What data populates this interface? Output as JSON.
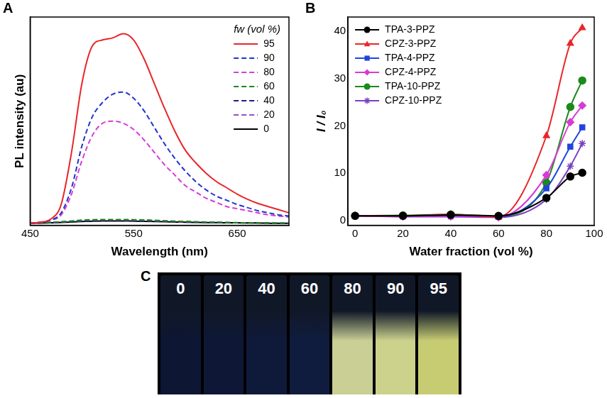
{
  "chart_data": [
    {
      "panel": "A",
      "type": "line",
      "x_label": "Wavelength (nm)",
      "y_label": "PL intensity (au)",
      "x": [
        450,
        460,
        470,
        480,
        490,
        500,
        510,
        520,
        530,
        540,
        550,
        560,
        570,
        580,
        590,
        600,
        610,
        620,
        630,
        640,
        650,
        660,
        670,
        680,
        690,
        700
      ],
      "series": [
        {
          "name": "95",
          "color": "#e8262a",
          "line_style": "solid",
          "values": [
            1,
            1.5,
            3,
            10,
            35,
            68,
            86,
            89,
            90,
            92,
            89,
            80,
            68,
            56,
            45,
            36,
            30,
            25,
            21,
            18,
            15,
            12.5,
            10.5,
            9,
            7.5,
            6
          ]
        },
        {
          "name": "90",
          "color": "#2233cc",
          "line_style": "dashed",
          "values": [
            1,
            1.5,
            2.5,
            6,
            18,
            38,
            52,
            59,
            63,
            64,
            61,
            55,
            47,
            39,
            32,
            26,
            21,
            17,
            14,
            12,
            10,
            8.5,
            7,
            6,
            5,
            4.5
          ]
        },
        {
          "name": "80",
          "color": "#d63bd6",
          "line_style": "dashed",
          "values": [
            1,
            1.5,
            2.5,
            5,
            15,
            31,
            43,
            49,
            50,
            49,
            46,
            41,
            35,
            29,
            24,
            19,
            16,
            13,
            11,
            9,
            8,
            7,
            6,
            5,
            4.5,
            4
          ]
        },
        {
          "name": "60",
          "color": "#1a8a1a",
          "line_style": "dashed",
          "values": [
            1,
            1.2,
            1.4,
            1.7,
            2.1,
            2.5,
            2.7,
            2.8,
            2.8,
            2.8,
            2.7,
            2.6,
            2.4,
            2.2,
            2,
            1.9,
            1.7,
            1.6,
            1.5,
            1.4,
            1.3,
            1.2,
            1.2,
            1.1,
            1.1,
            1
          ]
        },
        {
          "name": "40",
          "color": "#1c1c80",
          "line_style": "dashed",
          "values": [
            1,
            1.1,
            1.3,
            1.6,
            1.9,
            2.3,
            2.5,
            2.6,
            2.6,
            2.6,
            2.5,
            2.4,
            2.2,
            2,
            1.9,
            1.7,
            1.6,
            1.5,
            1.4,
            1.3,
            1.2,
            1.2,
            1.1,
            1.1,
            1,
            1
          ]
        },
        {
          "name": "20",
          "color": "#8a4fd0",
          "line_style": "dashed",
          "values": [
            0.9,
            1,
            1.2,
            1.5,
            1.8,
            2.1,
            2.3,
            2.4,
            2.4,
            2.4,
            2.3,
            2.2,
            2,
            1.9,
            1.7,
            1.6,
            1.5,
            1.4,
            1.3,
            1.2,
            1.2,
            1.1,
            1.1,
            1,
            1,
            0.9
          ]
        },
        {
          "name": "0",
          "color": "#000000",
          "line_style": "solid",
          "values": [
            1,
            1.1,
            1.2,
            1.4,
            1.6,
            1.8,
            2,
            2.1,
            2.1,
            2.1,
            2,
            1.9,
            1.8,
            1.7,
            1.6,
            1.5,
            1.4,
            1.3,
            1.3,
            1.2,
            1.2,
            1.1,
            1.1,
            1,
            1,
            1
          ]
        }
      ],
      "xlim": [
        450,
        700
      ],
      "xticks": [
        450,
        550,
        650
      ],
      "ylim": [
        0,
        100
      ],
      "yticks": [],
      "tick_labels": "x",
      "grid": false,
      "legend": "top right",
      "legend_title": "fw (vol %)"
    },
    {
      "panel": "B",
      "type": "scatter",
      "x_label": "Water fraction (vol %)",
      "y_label": "I / I₀",
      "x": [
        0,
        20,
        40,
        60,
        80,
        90,
        95
      ],
      "series": [
        {
          "name": "TPA-3-PPZ",
          "color": "#000000",
          "marker": "circle",
          "line_style": "solid",
          "values": [
            1,
            1,
            1.2,
            1,
            4.8,
            9.3,
            10.1
          ]
        },
        {
          "name": "CPZ-3-PPZ",
          "color": "#e8262a",
          "marker": "triangle",
          "line_style": "solid",
          "values": [
            1,
            1,
            1.3,
            0.8,
            17.9,
            37.4,
            40.7
          ]
        },
        {
          "name": "TPA-4-PPZ",
          "color": "#2244dd",
          "marker": "square",
          "line_style": "solid",
          "values": [
            1,
            1,
            1.1,
            0.8,
            6.8,
            15.6,
            19.7
          ]
        },
        {
          "name": "CPZ-4-PPZ",
          "color": "#d63bd6",
          "marker": "diamond",
          "line_style": "solid",
          "values": [
            1,
            0.9,
            0.9,
            0.7,
            9.6,
            20.8,
            24.3
          ]
        },
        {
          "name": "TPA-10-PPZ",
          "color": "#1a8a1a",
          "marker": "circle",
          "line_style": "solid",
          "values": [
            1,
            1.1,
            1.3,
            0.9,
            8,
            24,
            29.6
          ]
        },
        {
          "name": "CPZ-10-PPZ",
          "color": "#7a3fc0",
          "marker": "star",
          "line_style": "solid",
          "values": [
            1,
            0.8,
            0.8,
            0.7,
            4.5,
            11.5,
            16.3
          ]
        }
      ],
      "xlim": [
        -3,
        100
      ],
      "xticks": [
        0,
        20,
        40,
        60,
        80,
        100
      ],
      "ylim": [
        -1,
        43
      ],
      "yticks": [
        0,
        10,
        20,
        30,
        40
      ],
      "grid": false,
      "legend": "top left"
    }
  ],
  "photo": {
    "panel": "C",
    "labels": [
      "0",
      "20",
      "40",
      "60",
      "80",
      "90",
      "95"
    ],
    "colors": [
      "#0d1633",
      "#0e1836",
      "#0f1a3a",
      "#101c3e",
      "#c9cf95",
      "#ccd28c",
      "#c7cc72"
    ]
  }
}
